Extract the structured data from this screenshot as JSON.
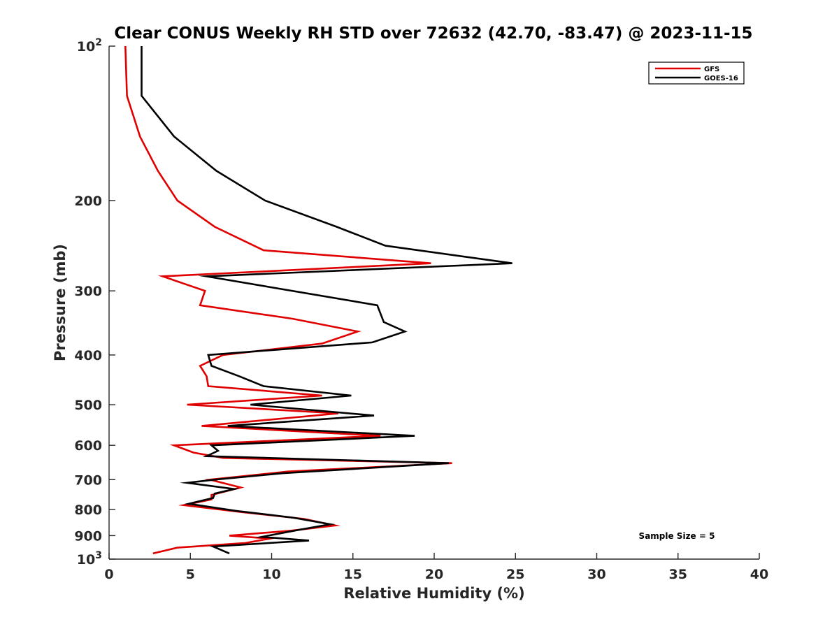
{
  "chart_data": {
    "type": "line",
    "title": "Clear CONUS Weekly RH STD over 72632 (42.70, -83.47) @ 2023-11-15",
    "xlabel": "Relative Humidity (%)",
    "ylabel": "Pressure (mb)",
    "xlim": [
      0,
      40
    ],
    "ylim": [
      100,
      1000
    ],
    "y_scale": "log",
    "y_reversed": true,
    "grid": false,
    "legend_position": "top-right",
    "x_ticks": [
      "0",
      "5",
      "10",
      "15",
      "20",
      "25",
      "30",
      "35",
      "40"
    ],
    "y_ticks": [
      {
        "value": 100,
        "base": "10",
        "exp": "2"
      },
      {
        "value": 200,
        "label": "200"
      },
      {
        "value": 300,
        "label": "300"
      },
      {
        "value": 400,
        "label": "400"
      },
      {
        "value": 500,
        "label": "500"
      },
      {
        "value": 600,
        "label": "600"
      },
      {
        "value": 700,
        "label": "700"
      },
      {
        "value": 800,
        "label": "800"
      },
      {
        "value": 900,
        "label": "900"
      },
      {
        "value": 1000,
        "base": "10",
        "exp": "3"
      }
    ],
    "annotation": "Sample Size = 5",
    "series": [
      {
        "name": "GFS",
        "color": "#e00000",
        "points": [
          [
            1.0,
            100
          ],
          [
            1.1,
            125
          ],
          [
            1.9,
            150
          ],
          [
            3.0,
            175
          ],
          [
            4.2,
            200
          ],
          [
            6.5,
            225
          ],
          [
            9.5,
            250
          ],
          [
            19.8,
            265
          ],
          [
            3.3,
            281
          ],
          [
            5.9,
            300
          ],
          [
            5.6,
            320
          ],
          [
            11.3,
            340
          ],
          [
            15.3,
            360
          ],
          [
            13.1,
            380
          ],
          [
            7.0,
            400
          ],
          [
            5.6,
            420
          ],
          [
            6.0,
            440
          ],
          [
            6.1,
            460
          ],
          [
            13.1,
            480
          ],
          [
            4.8,
            500
          ],
          [
            14.1,
            520
          ],
          [
            5.7,
            550
          ],
          [
            16.7,
            575
          ],
          [
            4.0,
            600
          ],
          [
            5.2,
            620
          ],
          [
            7.0,
            635
          ],
          [
            21.1,
            650
          ],
          [
            11.0,
            675
          ],
          [
            6.2,
            700
          ],
          [
            8.1,
            725
          ],
          [
            6.3,
            750
          ],
          [
            6.3,
            765
          ],
          [
            4.6,
            785
          ],
          [
            8.2,
            810
          ],
          [
            12.0,
            835
          ],
          [
            13.9,
            860
          ],
          [
            11.2,
            880
          ],
          [
            7.4,
            900
          ],
          [
            9.9,
            912
          ],
          [
            8.4,
            930
          ],
          [
            4.2,
            950
          ],
          [
            2.7,
            975
          ]
        ]
      },
      {
        "name": "GOES-16",
        "color": "#000000",
        "points": [
          [
            2.0,
            100
          ],
          [
            2.0,
            125
          ],
          [
            4.0,
            150
          ],
          [
            6.6,
            175
          ],
          [
            9.6,
            200
          ],
          [
            14.0,
            225
          ],
          [
            17.0,
            245
          ],
          [
            24.8,
            265
          ],
          [
            6.0,
            281
          ],
          [
            16.5,
            320
          ],
          [
            16.9,
            345
          ],
          [
            18.2,
            360
          ],
          [
            16.2,
            378
          ],
          [
            6.1,
            400
          ],
          [
            6.3,
            420
          ],
          [
            8.0,
            440
          ],
          [
            9.5,
            460
          ],
          [
            14.9,
            480
          ],
          [
            8.7,
            500
          ],
          [
            16.3,
            525
          ],
          [
            7.3,
            550
          ],
          [
            18.8,
            575
          ],
          [
            6.3,
            600
          ],
          [
            6.7,
            615
          ],
          [
            6.0,
            630
          ],
          [
            20.9,
            650
          ],
          [
            10.7,
            680
          ],
          [
            6.5,
            700
          ],
          [
            4.8,
            710
          ],
          [
            7.7,
            730
          ],
          [
            6.5,
            745
          ],
          [
            6.4,
            760
          ],
          [
            4.9,
            780
          ],
          [
            7.8,
            805
          ],
          [
            11.3,
            830
          ],
          [
            13.6,
            855
          ],
          [
            11.4,
            880
          ],
          [
            9.4,
            905
          ],
          [
            12.3,
            920
          ],
          [
            6.4,
            945
          ],
          [
            7.4,
            975
          ]
        ]
      }
    ]
  }
}
